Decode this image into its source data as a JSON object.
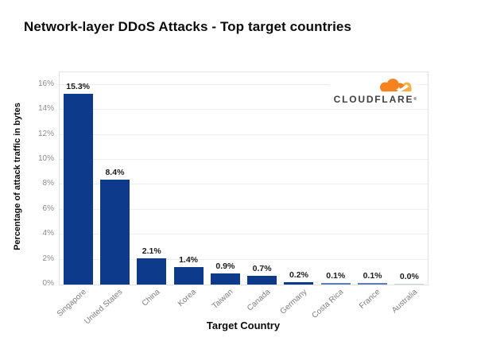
{
  "branding": {
    "logo_text": "CLOUDFLARE",
    "logo_mark": "®",
    "cloud_primary": "#f6821f",
    "cloud_secondary": "#fbad41",
    "wordmark_color": "#3f3f41"
  },
  "chart_data": {
    "type": "bar",
    "title": "Network-layer DDoS Attacks - Top target countries",
    "categories": [
      "Singapore",
      "United States",
      "China",
      "Korea",
      "Taiwan",
      "Canada",
      "Germany",
      "Costa Rica",
      "France",
      "Australia"
    ],
    "values": [
      15.3,
      8.4,
      2.1,
      1.4,
      0.9,
      0.7,
      0.2,
      0.1,
      0.1,
      0.0
    ],
    "value_labels": [
      "15.3%",
      "8.4%",
      "2.1%",
      "1.4%",
      "0.9%",
      "0.7%",
      "0.2%",
      "0.1%",
      "0.1%",
      "0.0%"
    ],
    "xlabel": "Target Country",
    "ylabel": "Percentage of attack traffic in bytes",
    "ylim": [
      0,
      17
    ],
    "ytick_values": [
      0,
      2,
      4,
      6,
      8,
      10,
      12,
      14,
      16
    ],
    "ytick_labels": [
      "0%",
      "2%",
      "4%",
      "6%",
      "8%",
      "10%",
      "12%",
      "14%",
      "16%"
    ],
    "grid": true,
    "legend": "none",
    "bar_color": "#0e3a8c",
    "bar_color_thin": "#5c80b6",
    "bar_color_faint": "#c9d4e6",
    "gridline_color": "#ededed",
    "axis_text_color": "#8c8c8c",
    "value_label_color": "#1b1b1b"
  }
}
